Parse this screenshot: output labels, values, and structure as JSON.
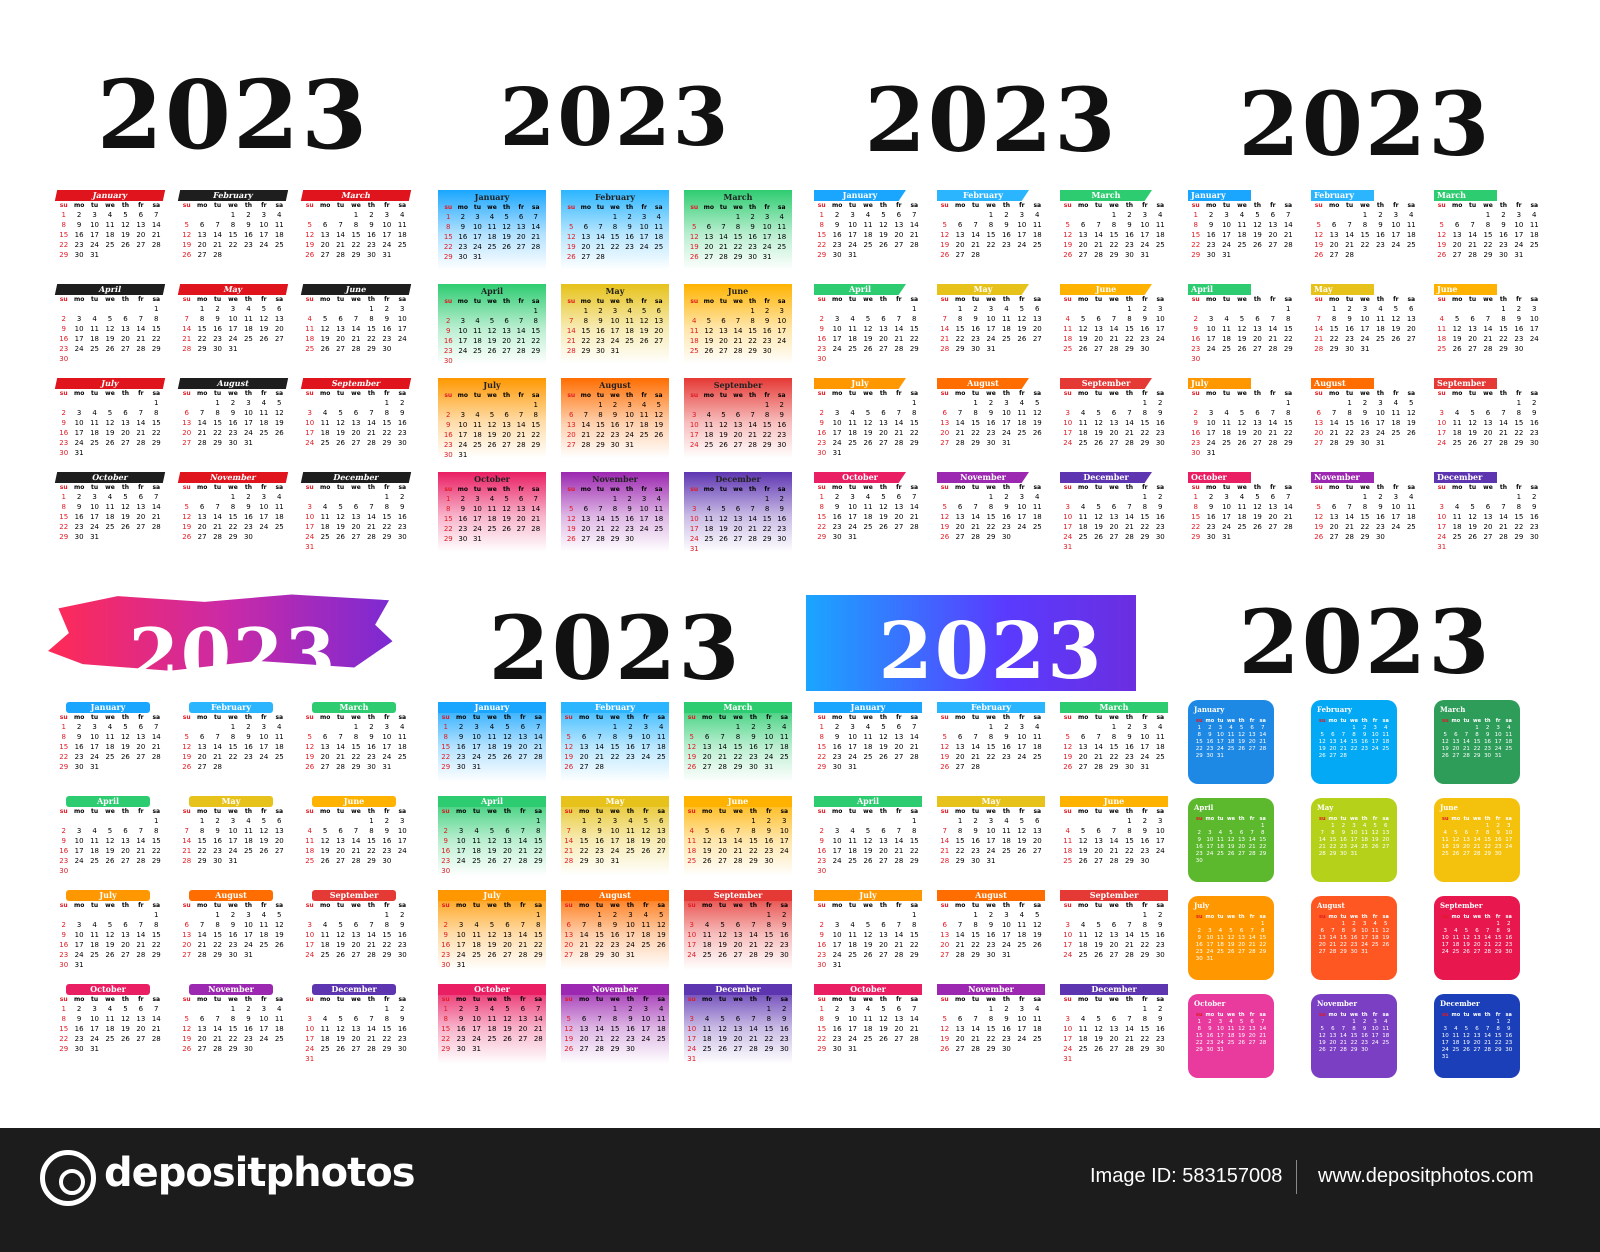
{
  "title": "2023",
  "months": [
    "January",
    "February",
    "March",
    "April",
    "May",
    "June",
    "July",
    "August",
    "September",
    "October",
    "November",
    "December"
  ],
  "weekdays": [
    "su",
    "mo",
    "tu",
    "we",
    "th",
    "fr",
    "sa"
  ],
  "month_offsets": [
    0,
    3,
    3,
    6,
    1,
    4,
    6,
    2,
    5,
    0,
    3,
    5
  ],
  "month_lengths": [
    31,
    28,
    31,
    30,
    31,
    30,
    31,
    31,
    30,
    31,
    30,
    31
  ],
  "panels": [
    {
      "style": "s1",
      "title_font": 95,
      "title_top": 60
    },
    {
      "style": "s2",
      "title_font": 80,
      "title_top": 70
    },
    {
      "style": "s3",
      "title_font": 88,
      "title_top": 68
    },
    {
      "style": "s4",
      "title_font": 88,
      "title_top": 72
    },
    {
      "style": "s5",
      "title_font": 72,
      "title_top": 22,
      "title_color": "#ffffff"
    },
    {
      "style": "s6",
      "title_font": 88,
      "title_top": 6
    },
    {
      "style": "s7",
      "title_font": 78,
      "title_top": 16,
      "title_color": "#ffffff"
    },
    {
      "style": "s8",
      "title_font": 88,
      "title_top": 0
    }
  ],
  "colors": {
    "rainbow": [
      "#1aa6ff",
      "#2bb5ff",
      "#2ecc71",
      "#2ecc71",
      "#e6c21a",
      "#ffb300",
      "#ff9800",
      "#ff6d00",
      "#e53935",
      "#e91e63",
      "#9c27b0",
      "#5e35b1"
    ],
    "s8": [
      "#1e88e5",
      "#03a9f4",
      "#2e9d5a",
      "#5cb82c",
      "#b6d11a",
      "#f4c20d",
      "#ff9800",
      "#ff5722",
      "#e8174d",
      "#e83b9d",
      "#7b3fc4",
      "#1a3fb8"
    ]
  },
  "footer": {
    "brand": "depositphotos",
    "image_id": "Image ID: 583157008",
    "site": "www.depositphotos.com"
  }
}
